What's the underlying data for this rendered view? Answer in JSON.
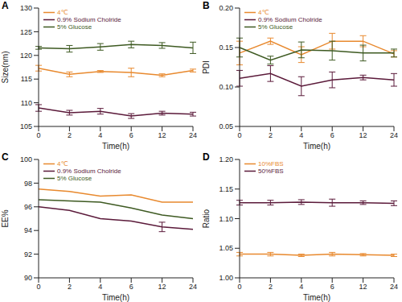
{
  "chart_data": [
    {
      "type": "line",
      "title": "A",
      "x_label": "Time(h)",
      "y_label": "Size(nm)",
      "categories": [
        "0",
        "2",
        "4",
        "6",
        "12",
        "24"
      ],
      "ylim": [
        105,
        130
      ],
      "yticks": [
        105,
        110,
        115,
        120,
        125,
        130
      ],
      "series": [
        {
          "name": "4℃",
          "color": "#E8892E",
          "values": [
            117.3,
            116.0,
            116.6,
            116.4,
            115.8,
            116.8
          ],
          "errors": [
            0.6,
            0.5,
            0.2,
            0.9,
            0.3,
            0.3
          ]
        },
        {
          "name": "0.9% Sodium Cholride",
          "color": "#5B1A3A",
          "values": [
            108.9,
            107.9,
            108.2,
            107.2,
            107.8,
            107.6
          ],
          "errors": [
            0.7,
            0.5,
            0.6,
            0.5,
            0.4,
            0.4
          ]
        },
        {
          "name": "5% Glucose",
          "color": "#3E5A22",
          "values": [
            121.6,
            121.4,
            121.8,
            122.3,
            122.1,
            121.6
          ],
          "errors": [
            0.3,
            0.7,
            0.7,
            0.7,
            0.6,
            1.2
          ]
        }
      ]
    },
    {
      "type": "line",
      "title": "B",
      "x_label": "Time(h)",
      "y_label": "PDI",
      "categories": [
        "0",
        "2",
        "4",
        "6",
        "12",
        "24"
      ],
      "ylim": [
        0.05,
        0.2
      ],
      "yticks": [
        0.05,
        {
          "value": 0.1,
          "label": "0.10"
        },
        0.15,
        {
          "value": 0.2,
          "label": "0.20"
        }
      ],
      "series": [
        {
          "name": "4℃",
          "color": "#E8892E",
          "values": [
            0.143,
            0.158,
            0.141,
            0.158,
            0.158,
            0.142
          ],
          "errors": [
            0.015,
            0.004,
            0.01,
            0.01,
            0.007,
            0.004
          ]
        },
        {
          "name": "0.9% Sodium Cholride",
          "color": "#5B1A3A",
          "values": [
            0.111,
            0.117,
            0.101,
            0.109,
            0.112,
            0.109
          ],
          "errors": [
            0.01,
            0.01,
            0.012,
            0.01,
            0.003,
            0.008
          ]
        },
        {
          "name": "5% Glucose",
          "color": "#3E5A22",
          "values": [
            0.15,
            0.134,
            0.147,
            0.146,
            0.143,
            0.143
          ],
          "errors": [
            0.012,
            0.005,
            0.01,
            0.012,
            0.01,
            0.005
          ]
        }
      ]
    },
    {
      "type": "line",
      "title": "C",
      "x_label": "Time(h)",
      "y_label": "EE%",
      "categories": [
        "0",
        "2",
        "4",
        "6",
        "12",
        "24"
      ],
      "ylim": [
        90,
        100
      ],
      "yticks": [
        90,
        92,
        94,
        96,
        98,
        100
      ],
      "series": [
        {
          "name": "4℃",
          "color": "#E8892E",
          "values": [
            97.5,
            97.3,
            96.9,
            97.0,
            96.4,
            96.4
          ],
          "errors": [
            0,
            0,
            0,
            0,
            0,
            0
          ]
        },
        {
          "name": "0.9% Sodium Cholride",
          "color": "#5B1A3A",
          "values": [
            96.0,
            95.7,
            95.0,
            94.8,
            94.3,
            94.1
          ],
          "errors": [
            0,
            0,
            0,
            0,
            0.4,
            0
          ]
        },
        {
          "name": "5% Glucose",
          "color": "#3E5A22",
          "values": [
            96.6,
            96.5,
            96.4,
            95.9,
            95.3,
            95.0
          ],
          "errors": [
            0,
            0,
            0,
            0,
            0,
            0
          ]
        }
      ]
    },
    {
      "type": "line",
      "title": "D",
      "x_label": "Time(h)",
      "y_label": "Ratio",
      "categories": [
        "0",
        "2",
        "4",
        "6",
        "12",
        "24"
      ],
      "ylim": [
        1,
        1.2
      ],
      "yticks": [
        {
          "value": 1,
          "label": "1.00"
        },
        1.05,
        {
          "value": 1.1,
          "label": "1.10"
        },
        1.15,
        {
          "value": 1.2,
          "label": "1.20"
        }
      ],
      "series": [
        {
          "name": "10%FBS",
          "color": "#E8892E",
          "values": [
            1.04,
            1.04,
            1.038,
            1.04,
            1.039,
            1.038
          ],
          "errors": [
            0.003,
            0.003,
            0.002,
            0.003,
            0.002,
            0.002
          ]
        },
        {
          "name": "50%FBS",
          "color": "#5B1A3A",
          "values": [
            1.127,
            1.127,
            1.128,
            1.127,
            1.127,
            1.126
          ],
          "errors": [
            0.004,
            0.004,
            0.004,
            0.006,
            0.003,
            0.004
          ]
        }
      ]
    }
  ]
}
